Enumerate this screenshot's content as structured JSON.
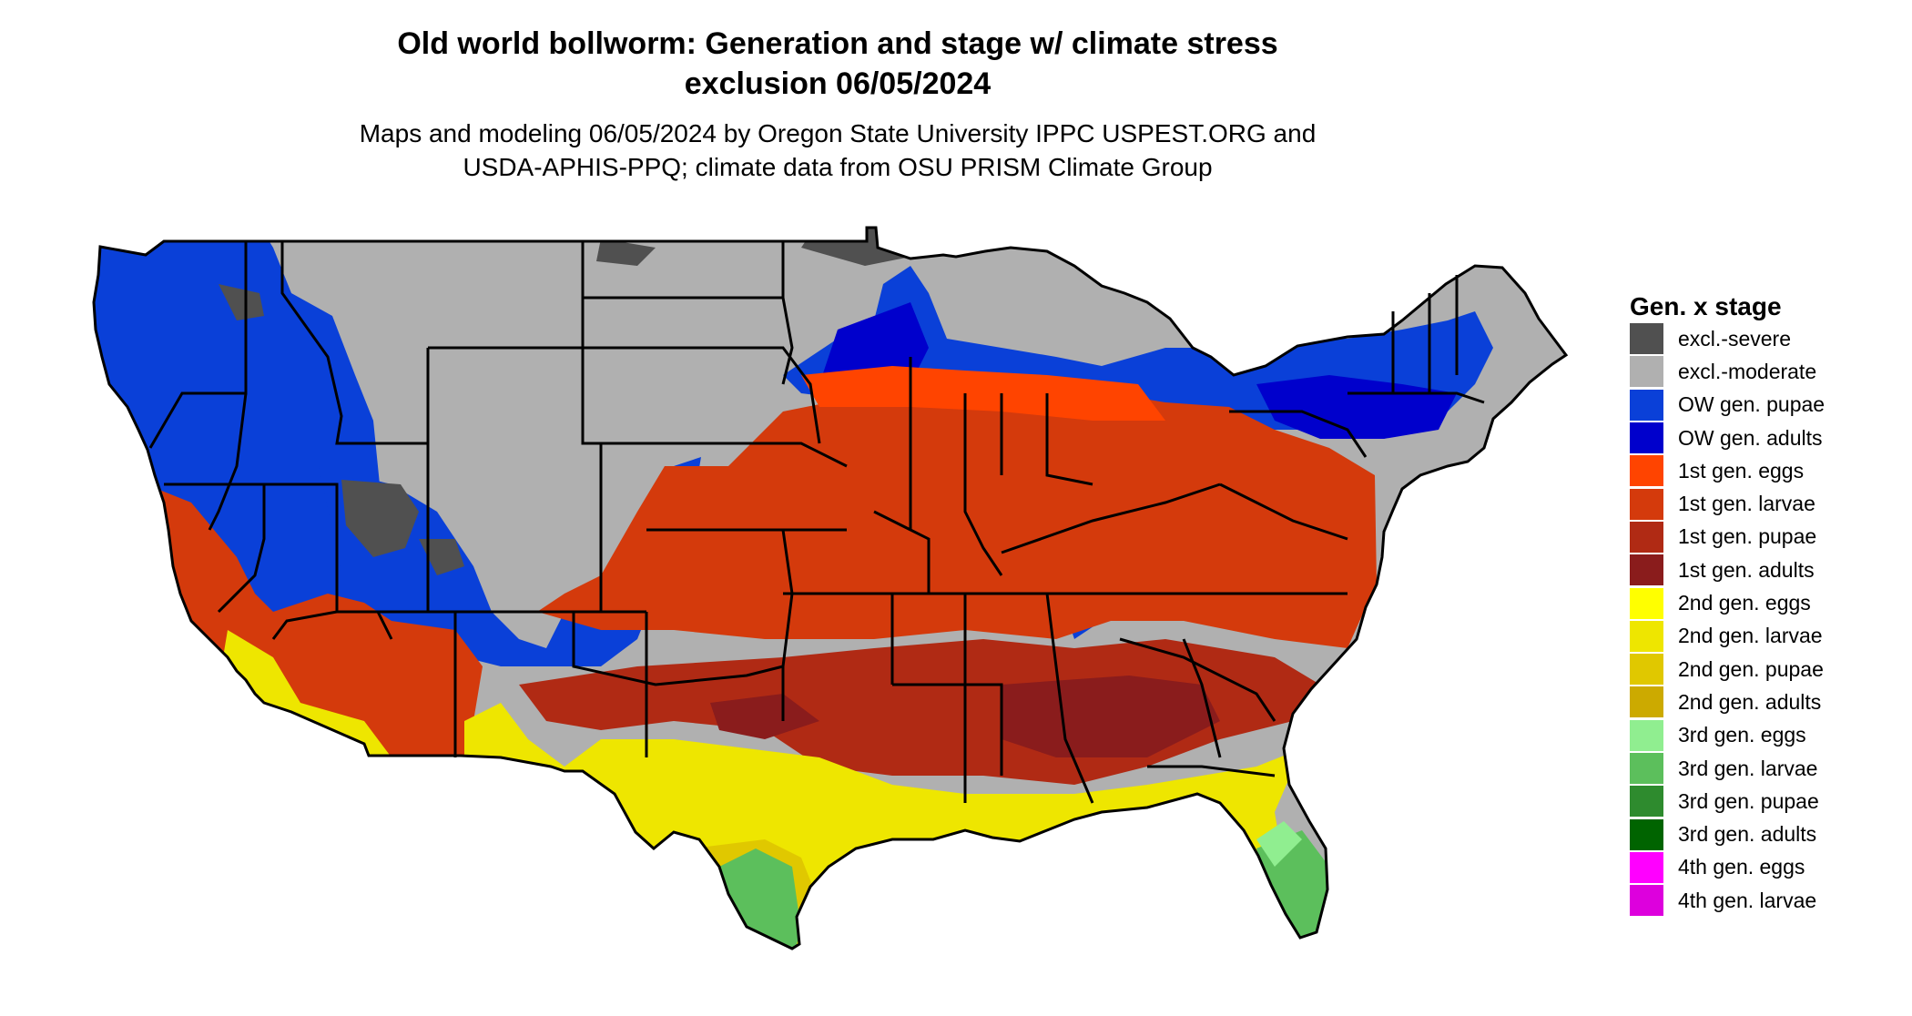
{
  "title_line1": "Old world bollworm: Generation and stage w/ climate stress",
  "title_line2": "exclusion 06/05/2024",
  "subtitle_line1": "Maps and modeling 06/05/2024 by Oregon State University IPPC USPEST.ORG and",
  "subtitle_line2": "USDA-APHIS-PPQ; climate data from OSU PRISM Climate Group",
  "legend": {
    "title": "Gen. x stage",
    "items": [
      {
        "label": "excl.-severe",
        "color": "#505050"
      },
      {
        "label": "excl.-moderate",
        "color": "#b0b0b0"
      },
      {
        "label": "OW gen. pupae",
        "color": "#0a40d8"
      },
      {
        "label": "OW gen. adults",
        "color": "#0000cc"
      },
      {
        "label": "1st gen. eggs",
        "color": "#ff4400"
      },
      {
        "label": "1st gen. larvae",
        "color": "#d43a0c"
      },
      {
        "label": "1st gen. pupae",
        "color": "#b02a14"
      },
      {
        "label": "1st gen. adults",
        "color": "#8a1c1c"
      },
      {
        "label": "2nd gen. eggs",
        "color": "#ffff00"
      },
      {
        "label": "2nd gen. larvae",
        "color": "#eee600"
      },
      {
        "label": "2nd gen. pupae",
        "color": "#e0c800"
      },
      {
        "label": "2nd gen. adults",
        "color": "#ccaa00"
      },
      {
        "label": "3rd gen. eggs",
        "color": "#90ee90"
      },
      {
        "label": "3rd gen. larvae",
        "color": "#5cbf5c"
      },
      {
        "label": "3rd gen. pupae",
        "color": "#2e8b2e"
      },
      {
        "label": "3rd gen. adults",
        "color": "#006400"
      },
      {
        "label": "4th gen. eggs",
        "color": "#ff00ff"
      },
      {
        "label": "4th gen. larvae",
        "color": "#dd00dd"
      }
    ]
  }
}
